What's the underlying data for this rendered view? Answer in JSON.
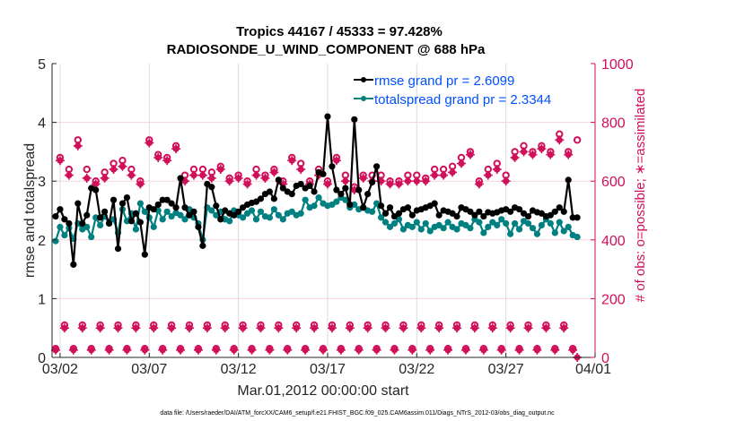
{
  "chart_data": {
    "type": "line",
    "title": [
      "Tropics 44167 / 45333 = 97.428%",
      "RADIOSONDE_U_WIND_COMPONENT @ 688 hPa"
    ],
    "xlabel": "Mar.01,2012 00:00:00 start",
    "ylabel": "rmse and totalspread",
    "ylabel_right": "# of obs: o=possible; ∗=assimilated",
    "footer": "data file: /Users/raeder/DAI/ATM_forcXX/CAM6_setup/f.e21.FHIST_BGC.f09_025.CAM6assim.011/Diags_NTrS_2012-03/obs_diag_output.nc",
    "x_start_day": 0,
    "x_end_day": 31,
    "x_step_days": 0.25,
    "xlim_days": [
      0.55,
      31
    ],
    "xticks": [
      {
        "day": 1,
        "label": "03/02"
      },
      {
        "day": 6,
        "label": "03/07"
      },
      {
        "day": 11,
        "label": "03/12"
      },
      {
        "day": 16,
        "label": "03/17"
      },
      {
        "day": 21,
        "label": "03/22"
      },
      {
        "day": 26,
        "label": "03/27"
      },
      {
        "day": 31,
        "label": "04/01"
      }
    ],
    "ylim": [
      0,
      5
    ],
    "yticks": [
      0,
      1,
      2,
      3,
      4,
      5
    ],
    "ylim_right": [
      0,
      1000
    ],
    "yticks_right": [
      0,
      200,
      400,
      600,
      800,
      1000
    ],
    "grid": true,
    "legend_position": "top-right",
    "series": [
      {
        "name": "rmse",
        "legend": "rmse grand pr = 2.6099",
        "color": "#000000",
        "axis": "left",
        "values": [
          2.58,
          2.18,
          2.47,
          2.4,
          2.52,
          2.35,
          2.28,
          1.58,
          2.62,
          2.28,
          2.42,
          2.88,
          2.85,
          2.38,
          2.48,
          2.28,
          2.68,
          1.85,
          2.62,
          2.72,
          2.32,
          2.45,
          2.3,
          1.75,
          2.55,
          2.52,
          2.6,
          2.68,
          2.68,
          2.62,
          2.55,
          3.05,
          2.55,
          2.42,
          2.48,
          2.22,
          1.9,
          2.95,
          2.9,
          2.58,
          2.35,
          2.5,
          2.45,
          2.42,
          2.48,
          2.55,
          2.6,
          2.63,
          2.65,
          2.7,
          2.78,
          2.82,
          2.7,
          3.02,
          2.88,
          2.82,
          2.78,
          2.92,
          2.95,
          2.88,
          2.92,
          2.82,
          3.15,
          3.12,
          4.1,
          3.25,
          2.85,
          2.78,
          2.88,
          2.6,
          4.05,
          2.85,
          2.55,
          2.78,
          2.98,
          3.25,
          2.58,
          2.45,
          2.55,
          2.4,
          2.45,
          2.52,
          2.55,
          2.42,
          2.5,
          2.52,
          2.55,
          2.58,
          2.62,
          2.42,
          2.5,
          2.48,
          2.45,
          2.4,
          2.55,
          2.52,
          2.48,
          2.42,
          2.48,
          2.4,
          2.47,
          2.45,
          2.47,
          2.5,
          2.52,
          2.48,
          2.55,
          2.52,
          2.45,
          2.4,
          2.5,
          2.47,
          2.45,
          2.4,
          2.42,
          2.48,
          2.55,
          2.48,
          3.02,
          2.38,
          2.38
        ]
      },
      {
        "name": "totalspread",
        "legend": "totalspread grand pr = 2.3344",
        "color": "#008080",
        "axis": "left",
        "values": [
          2.3,
          2.08,
          2.28,
          1.98,
          2.22,
          2.08,
          2.2,
          2.02,
          2.28,
          2.18,
          2.22,
          2.05,
          2.38,
          2.25,
          2.4,
          2.28,
          2.35,
          2.12,
          2.52,
          2.32,
          2.45,
          2.18,
          2.62,
          2.48,
          2.38,
          2.22,
          2.5,
          2.35,
          2.48,
          2.4,
          2.46,
          2.42,
          2.35,
          2.52,
          2.38,
          2.28,
          2.0,
          2.55,
          2.5,
          2.42,
          2.48,
          2.35,
          2.32,
          2.5,
          2.42,
          2.38,
          2.45,
          2.5,
          2.35,
          2.48,
          2.4,
          2.38,
          2.52,
          2.42,
          2.35,
          2.45,
          2.48,
          2.42,
          2.45,
          2.68,
          2.55,
          2.58,
          2.72,
          2.62,
          2.58,
          2.6,
          2.65,
          2.72,
          2.68,
          2.55,
          2.6,
          2.52,
          2.55,
          2.5,
          2.48,
          2.62,
          2.38,
          2.3,
          2.22,
          2.28,
          2.35,
          2.18,
          2.25,
          2.22,
          2.3,
          2.18,
          2.28,
          2.15,
          2.22,
          2.25,
          2.2,
          2.3,
          2.22,
          2.18,
          2.28,
          2.25,
          2.2,
          2.35,
          2.3,
          2.12,
          2.22,
          2.3,
          2.25,
          2.35,
          2.28,
          2.1,
          2.28,
          2.18,
          2.32,
          2.28,
          2.2,
          2.1,
          2.25,
          2.35,
          2.28,
          2.12,
          2.3,
          2.15,
          2.22,
          2.08,
          2.05
        ]
      },
      {
        "name": "obs possible",
        "marker": "o",
        "color": "#d0105a",
        "axis": "right",
        "values": [
          612,
          110,
          660,
          30,
          680,
          110,
          640,
          30,
          740,
          110,
          640,
          30,
          600,
          110,
          630,
          30,
          660,
          110,
          670,
          30,
          640,
          110,
          600,
          30,
          740,
          110,
          690,
          30,
          680,
          110,
          720,
          30,
          620,
          110,
          640,
          30,
          640,
          110,
          630,
          30,
          650,
          110,
          610,
          30,
          620,
          110,
          600,
          30,
          640,
          110,
          620,
          30,
          640,
          110,
          600,
          30,
          680,
          110,
          660,
          30,
          600,
          110,
          640,
          30,
          600,
          110,
          680,
          30,
          620,
          110,
          580,
          30,
          620,
          110,
          620,
          30,
          620,
          110,
          600,
          30,
          600,
          110,
          620,
          30,
          620,
          110,
          610,
          30,
          640,
          110,
          640,
          30,
          650,
          110,
          680,
          30,
          700,
          110,
          600,
          30,
          640,
          110,
          660,
          30,
          620,
          110,
          700,
          30,
          720,
          110,
          700,
          30,
          720,
          110,
          700,
          30,
          760,
          110,
          700,
          30,
          740
        ]
      },
      {
        "name": "obs assimilated",
        "marker": "*",
        "color": "#d0105a",
        "axis": "right",
        "values": [
          605,
          100,
          640,
          25,
          670,
          100,
          620,
          25,
          720,
          100,
          610,
          25,
          590,
          100,
          610,
          25,
          640,
          100,
          650,
          25,
          620,
          100,
          590,
          25,
          730,
          100,
          680,
          25,
          670,
          100,
          710,
          25,
          600,
          100,
          620,
          25,
          620,
          100,
          610,
          25,
          640,
          100,
          600,
          25,
          610,
          100,
          590,
          25,
          620,
          100,
          610,
          25,
          630,
          100,
          590,
          25,
          670,
          100,
          640,
          25,
          590,
          100,
          620,
          25,
          590,
          100,
          670,
          25,
          600,
          100,
          570,
          25,
          610,
          100,
          600,
          25,
          600,
          100,
          590,
          25,
          590,
          100,
          600,
          25,
          600,
          100,
          600,
          25,
          620,
          100,
          620,
          25,
          630,
          100,
          660,
          25,
          690,
          100,
          590,
          25,
          620,
          100,
          640,
          25,
          600,
          100,
          680,
          25,
          700,
          100,
          690,
          25,
          710,
          100,
          690,
          25,
          740,
          100,
          690,
          25,
          0
        ]
      }
    ]
  }
}
